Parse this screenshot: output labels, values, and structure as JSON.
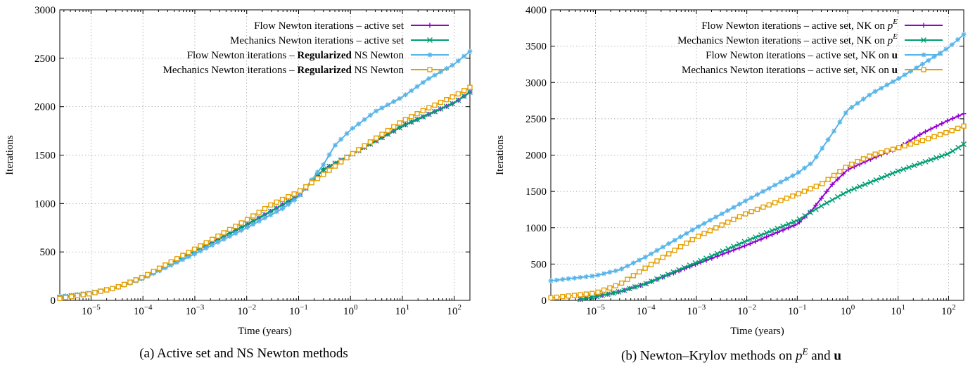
{
  "panels": [
    {
      "caption": "(a) Active set and NS Newton methods",
      "chart_data": {
        "type": "line",
        "xlabel": "Time (years)",
        "ylabel": "Iterations",
        "xscale": "log",
        "xlim": [
          2.5e-06,
          200
        ],
        "ylim": [
          0,
          3000
        ],
        "yticks": [
          "0",
          "500",
          "1000",
          "1500",
          "2000",
          "2500",
          "3000"
        ],
        "xticks": [
          {
            "base": "10",
            "exp": "−5"
          },
          {
            "base": "10",
            "exp": "−4"
          },
          {
            "base": "10",
            "exp": "−3"
          },
          {
            "base": "10",
            "exp": "−2"
          },
          {
            "base": "10",
            "exp": "−1"
          },
          {
            "base": "10",
            "exp": "0"
          },
          {
            "base": "10",
            "exp": "1"
          },
          {
            "base": "10",
            "exp": "2"
          }
        ],
        "grid": true,
        "legend_position": "top-right",
        "series": [
          {
            "name": "Flow Newton iterations – active set",
            "legend_parts": [
              {
                "t": "Flow Newton iterations – active set"
              }
            ],
            "color": "#9400d3",
            "marker": "plus",
            "points": [
              [
                2.5e-06,
                30
              ],
              [
                1e-05,
                75
              ],
              [
                3e-05,
                130
              ],
              [
                0.0001,
                240
              ],
              [
                0.001,
                510
              ],
              [
                0.01,
                780
              ],
              [
                0.1,
                1080
              ],
              [
                0.3,
                1350
              ],
              [
                1,
                1500
              ],
              [
                10,
                1800
              ],
              [
                100,
                2040
              ],
              [
                200,
                2150
              ]
            ]
          },
          {
            "name": "Mechanics Newton iterations – active set",
            "legend_parts": [
              {
                "t": "Mechanics Newton iterations – active set"
              }
            ],
            "color": "#009e73",
            "marker": "x",
            "points": [
              [
                2.5e-06,
                30
              ],
              [
                1e-05,
                75
              ],
              [
                3e-05,
                130
              ],
              [
                0.0001,
                240
              ],
              [
                0.001,
                510
              ],
              [
                0.01,
                780
              ],
              [
                0.1,
                1080
              ],
              [
                0.3,
                1350
              ],
              [
                1,
                1500
              ],
              [
                10,
                1800
              ],
              [
                100,
                2040
              ],
              [
                200,
                2150
              ]
            ]
          },
          {
            "name": "Flow Newton iterations – Regularized NS Newton",
            "legend_parts": [
              {
                "t": "Flow Newton iterations – "
              },
              {
                "t": "Regularized",
                "b": true
              },
              {
                "t": " NS Newton"
              }
            ],
            "color": "#56b4e9",
            "marker": "star",
            "points": [
              [
                2.5e-06,
                40
              ],
              [
                1e-05,
                75
              ],
              [
                3e-05,
                125
              ],
              [
                0.0001,
                225
              ],
              [
                0.001,
                480
              ],
              [
                0.01,
                750
              ],
              [
                0.05,
                950
              ],
              [
                0.1,
                1070
              ],
              [
                0.3,
                1400
              ],
              [
                0.5,
                1600
              ],
              [
                1,
                1760
              ],
              [
                3,
                1950
              ],
              [
                10,
                2100
              ],
              [
                30,
                2280
              ],
              [
                100,
                2440
              ],
              [
                200,
                2570
              ]
            ]
          },
          {
            "name": "Mechanics Newton iterations – Regularized NS Newton",
            "legend_parts": [
              {
                "t": "Mechanics Newton iterations – "
              },
              {
                "t": "Regularized",
                "b": true
              },
              {
                "t": " NS Newton"
              }
            ],
            "color": "#e69f00",
            "marker": "square",
            "points": [
              [
                2.5e-06,
                20
              ],
              [
                1e-05,
                70
              ],
              [
                3e-05,
                130
              ],
              [
                0.0001,
                240
              ],
              [
                0.001,
                530
              ],
              [
                0.01,
                830
              ],
              [
                0.03,
                990
              ],
              [
                0.1,
                1120
              ],
              [
                0.3,
                1300
              ],
              [
                1,
                1500
              ],
              [
                3,
                1670
              ],
              [
                10,
                1850
              ],
              [
                30,
                1980
              ],
              [
                100,
                2110
              ],
              [
                200,
                2200
              ]
            ]
          }
        ]
      }
    },
    {
      "caption_parts": {
        "prefix": "(b) Newton–Krylov methods on ",
        "math_base": "p",
        "math_sup": "E",
        "mid": " and ",
        "bold": "u"
      },
      "chart_data": {
        "type": "line",
        "xlabel": "Time (years)",
        "ylabel": "Iterations",
        "xscale": "log",
        "xlim": [
          1.3e-06,
          200
        ],
        "ylim": [
          0,
          4000
        ],
        "yticks": [
          "0",
          "500",
          "1000",
          "1500",
          "2000",
          "2500",
          "3000",
          "3500",
          "4000"
        ],
        "xticks": [
          {
            "base": "10",
            "exp": "−5"
          },
          {
            "base": "10",
            "exp": "−4"
          },
          {
            "base": "10",
            "exp": "−3"
          },
          {
            "base": "10",
            "exp": "−2"
          },
          {
            "base": "10",
            "exp": "−1"
          },
          {
            "base": "10",
            "exp": "0"
          },
          {
            "base": "10",
            "exp": "1"
          },
          {
            "base": "10",
            "exp": "2"
          }
        ],
        "grid": true,
        "legend_position": "top-right",
        "series": [
          {
            "name": "Flow Newton iterations – active set, NK on p^E",
            "legend_parts": [
              {
                "t": "Flow Newton iterations – active set, NK on "
              },
              {
                "t": "p",
                "i": true
              },
              {
                "t": "E",
                "sup": true
              }
            ],
            "color": "#9400d3",
            "marker": "plus",
            "points": [
              [
                5e-06,
                15
              ],
              [
                1e-05,
                50
              ],
              [
                3e-05,
                120
              ],
              [
                0.0001,
                230
              ],
              [
                0.001,
                500
              ],
              [
                0.01,
                760
              ],
              [
                0.1,
                1050
              ],
              [
                0.2,
                1250
              ],
              [
                0.5,
                1600
              ],
              [
                1,
                1800
              ],
              [
                3,
                1950
              ],
              [
                10,
                2100
              ],
              [
                30,
                2300
              ],
              [
                100,
                2480
              ],
              [
                200,
                2570
              ]
            ]
          },
          {
            "name": "Mechanics Newton iterations – active set, NK on p^E",
            "legend_parts": [
              {
                "t": "Mechanics Newton iterations – active set, NK on "
              },
              {
                "t": "p",
                "i": true
              },
              {
                "t": "E",
                "sup": true
              }
            ],
            "color": "#009e73",
            "marker": "x",
            "points": [
              [
                5e-06,
                15
              ],
              [
                1e-05,
                50
              ],
              [
                3e-05,
                120
              ],
              [
                0.0001,
                230
              ],
              [
                0.001,
                520
              ],
              [
                0.01,
                820
              ],
              [
                0.1,
                1100
              ],
              [
                0.3,
                1300
              ],
              [
                1,
                1500
              ],
              [
                10,
                1780
              ],
              [
                100,
                2020
              ],
              [
                200,
                2150
              ]
            ]
          },
          {
            "name": "Flow Newton iterations – active set, NK on u",
            "legend_parts": [
              {
                "t": "Flow Newton iterations – active set, NK on "
              },
              {
                "t": "u",
                "b": true
              }
            ],
            "color": "#56b4e9",
            "marker": "star",
            "points": [
              [
                1.3e-06,
                270
              ],
              [
                1e-05,
                340
              ],
              [
                3e-05,
                420
              ],
              [
                0.0001,
                600
              ],
              [
                0.001,
                1000
              ],
              [
                0.01,
                1380
              ],
              [
                0.1,
                1750
              ],
              [
                0.2,
                1900
              ],
              [
                0.5,
                2300
              ],
              [
                1,
                2620
              ],
              [
                3,
                2850
              ],
              [
                10,
                3050
              ],
              [
                30,
                3250
              ],
              [
                100,
                3480
              ],
              [
                200,
                3660
              ]
            ]
          },
          {
            "name": "Mechanics Newton iterations – active set, NK on u",
            "legend_parts": [
              {
                "t": "Mechanics Newton iterations – active set, NK on "
              },
              {
                "t": "u",
                "b": true
              }
            ],
            "color": "#e69f00",
            "marker": "square",
            "points": [
              [
                1.3e-06,
                35
              ],
              [
                1e-05,
                100
              ],
              [
                3e-05,
                220
              ],
              [
                0.0001,
                450
              ],
              [
                0.001,
                870
              ],
              [
                0.01,
                1200
              ],
              [
                0.1,
                1460
              ],
              [
                0.3,
                1600
              ],
              [
                1,
                1850
              ],
              [
                3,
                2000
              ],
              [
                10,
                2100
              ],
              [
                30,
                2200
              ],
              [
                100,
                2320
              ],
              [
                200,
                2400
              ]
            ]
          }
        ]
      }
    }
  ]
}
